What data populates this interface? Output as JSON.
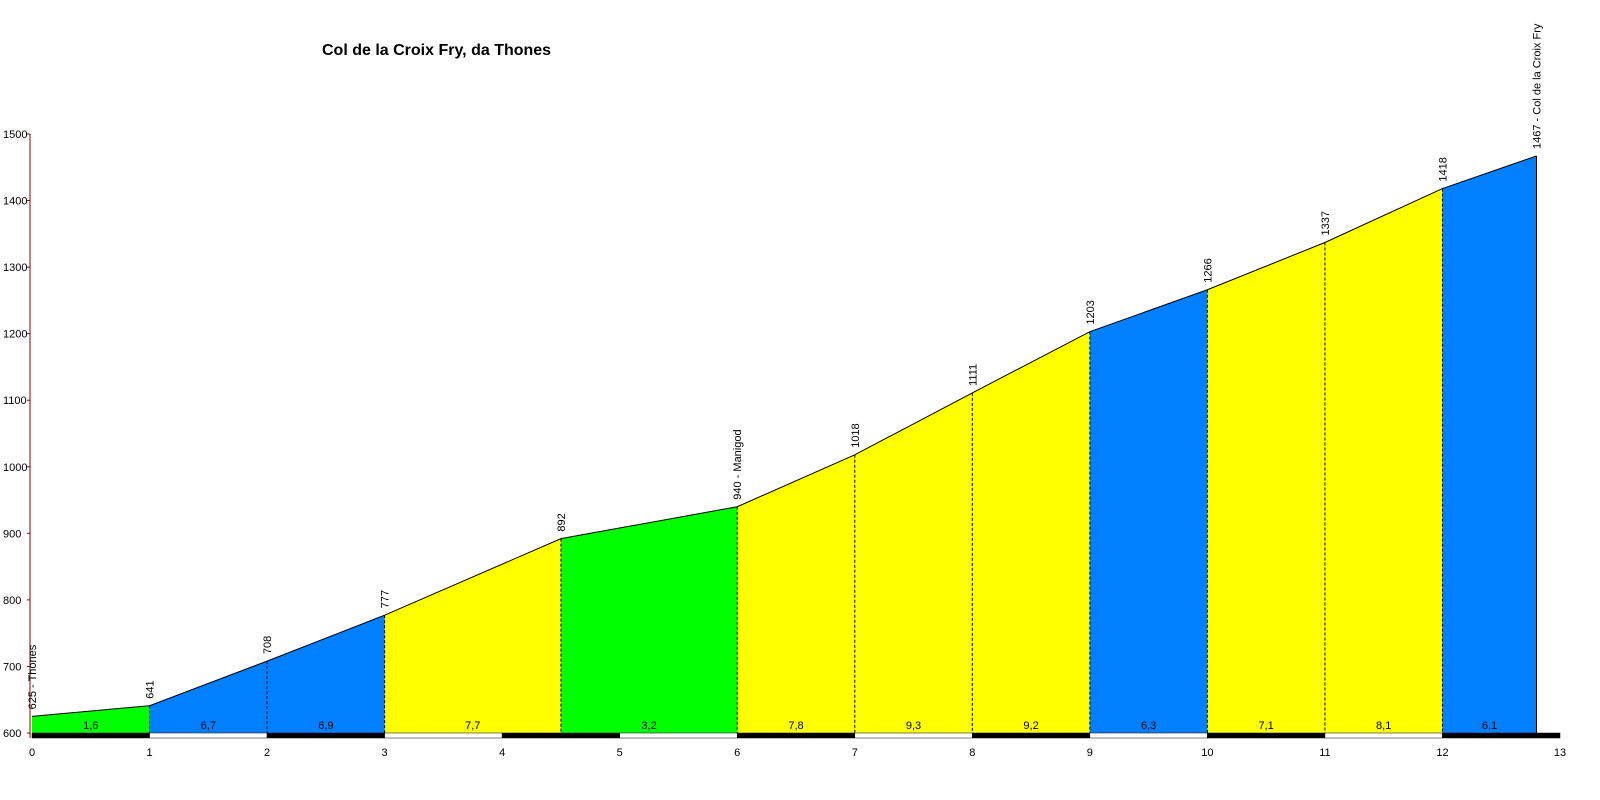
{
  "chart_data": {
    "type": "area",
    "title": "Col de la Croix Fry, da Thones",
    "xlabel": "",
    "ylabel": "",
    "xlim": [
      0,
      13
    ],
    "ylim": [
      600,
      1500
    ],
    "x_ticks": [
      "0",
      "1",
      "2",
      "3",
      "4",
      "5",
      "6",
      "7",
      "8",
      "9",
      "10",
      "11",
      "12",
      "13"
    ],
    "y_ticks": [
      "600",
      "700",
      "800",
      "900",
      "1000",
      "1100",
      "1200",
      "1300",
      "1400",
      "1500"
    ],
    "points": [
      {
        "km": 0,
        "alt": 625,
        "label": "625 - Thones"
      },
      {
        "km": 1,
        "alt": 641,
        "label": "641"
      },
      {
        "km": 2,
        "alt": 708,
        "label": "708"
      },
      {
        "km": 3,
        "alt": 777,
        "label": "777"
      },
      {
        "km": 4.5,
        "alt": 892,
        "label": "892"
      },
      {
        "km": 6,
        "alt": 940,
        "label": "940 - Manigod"
      },
      {
        "km": 7,
        "alt": 1018,
        "label": "1018"
      },
      {
        "km": 8,
        "alt": 1111,
        "label": "1111"
      },
      {
        "km": 9,
        "alt": 1203,
        "label": "1203"
      },
      {
        "km": 10,
        "alt": 1266,
        "label": "1266"
      },
      {
        "km": 11,
        "alt": 1337,
        "label": "1337"
      },
      {
        "km": 12,
        "alt": 1418,
        "label": "1418"
      },
      {
        "km": 12.8,
        "alt": 1467,
        "label": "1467 - Col de la Croix Fry"
      }
    ],
    "segments": [
      {
        "gradient": "1,6",
        "color": "#00ff00"
      },
      {
        "gradient": "6,7",
        "color": "#0080ff"
      },
      {
        "gradient": "6,9",
        "color": "#0080ff"
      },
      {
        "gradient": "7,7",
        "color": "#ffff00"
      },
      {
        "gradient": "3,2",
        "color": "#00ff00"
      },
      {
        "gradient": "7,8",
        "color": "#ffff00"
      },
      {
        "gradient": "9,3",
        "color": "#ffff00"
      },
      {
        "gradient": "9,2",
        "color": "#ffff00"
      },
      {
        "gradient": "6,3",
        "color": "#0080ff"
      },
      {
        "gradient": "7,1",
        "color": "#ffff00"
      },
      {
        "gradient": "8,1",
        "color": "#ffff00"
      },
      {
        "gradient": "6,1",
        "color": "#0080ff"
      }
    ],
    "grid": false,
    "legend": "none"
  }
}
